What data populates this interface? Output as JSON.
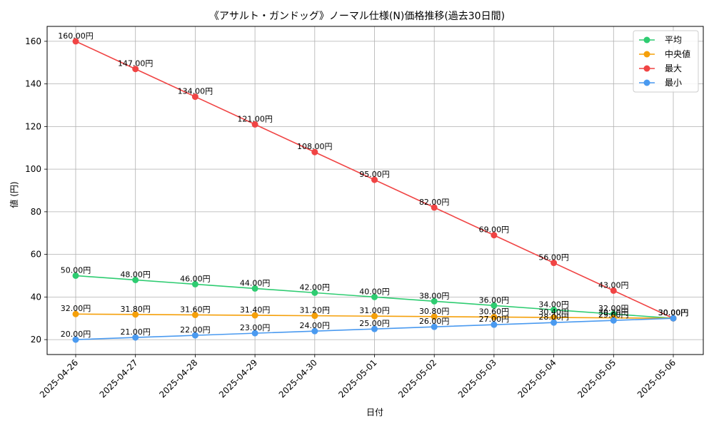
{
  "chart_data": {
    "type": "line",
    "title": "《アサルト・ガンドッグ》ノーマル仕様(N)価格推移(過去30日間)",
    "xlabel": "日付",
    "ylabel": "値 (円)",
    "value_suffix": "円",
    "categories": [
      "2025-04-26",
      "2025-04-27",
      "2025-04-28",
      "2025-04-29",
      "2025-04-30",
      "2025-05-01",
      "2025-05-02",
      "2025-05-03",
      "2025-05-04",
      "2025-05-05",
      "2025-05-06"
    ],
    "ylim": [
      13,
      167
    ],
    "yticks": [
      20,
      40,
      60,
      80,
      100,
      120,
      140,
      160
    ],
    "grid": true,
    "legend_position": "top-right",
    "series": [
      {
        "name": "平均",
        "color": "#2ecc71",
        "values": [
          50,
          48,
          46,
          44,
          42,
          40,
          38,
          36,
          34,
          32,
          30
        ]
      },
      {
        "name": "中央値",
        "color": "#f5a00a",
        "values": [
          32,
          31.8,
          31.6,
          31.4,
          31.2,
          31,
          30.8,
          30.6,
          30.4,
          30.2,
          30
        ]
      },
      {
        "name": "最大",
        "color": "#f04444",
        "values": [
          160,
          147,
          134,
          121,
          108,
          95,
          82,
          69,
          56,
          43,
          30
        ]
      },
      {
        "name": "最小",
        "color": "#4a9af0",
        "values": [
          20,
          21,
          22,
          23,
          24,
          25,
          26,
          27,
          28,
          29,
          30
        ]
      }
    ]
  }
}
